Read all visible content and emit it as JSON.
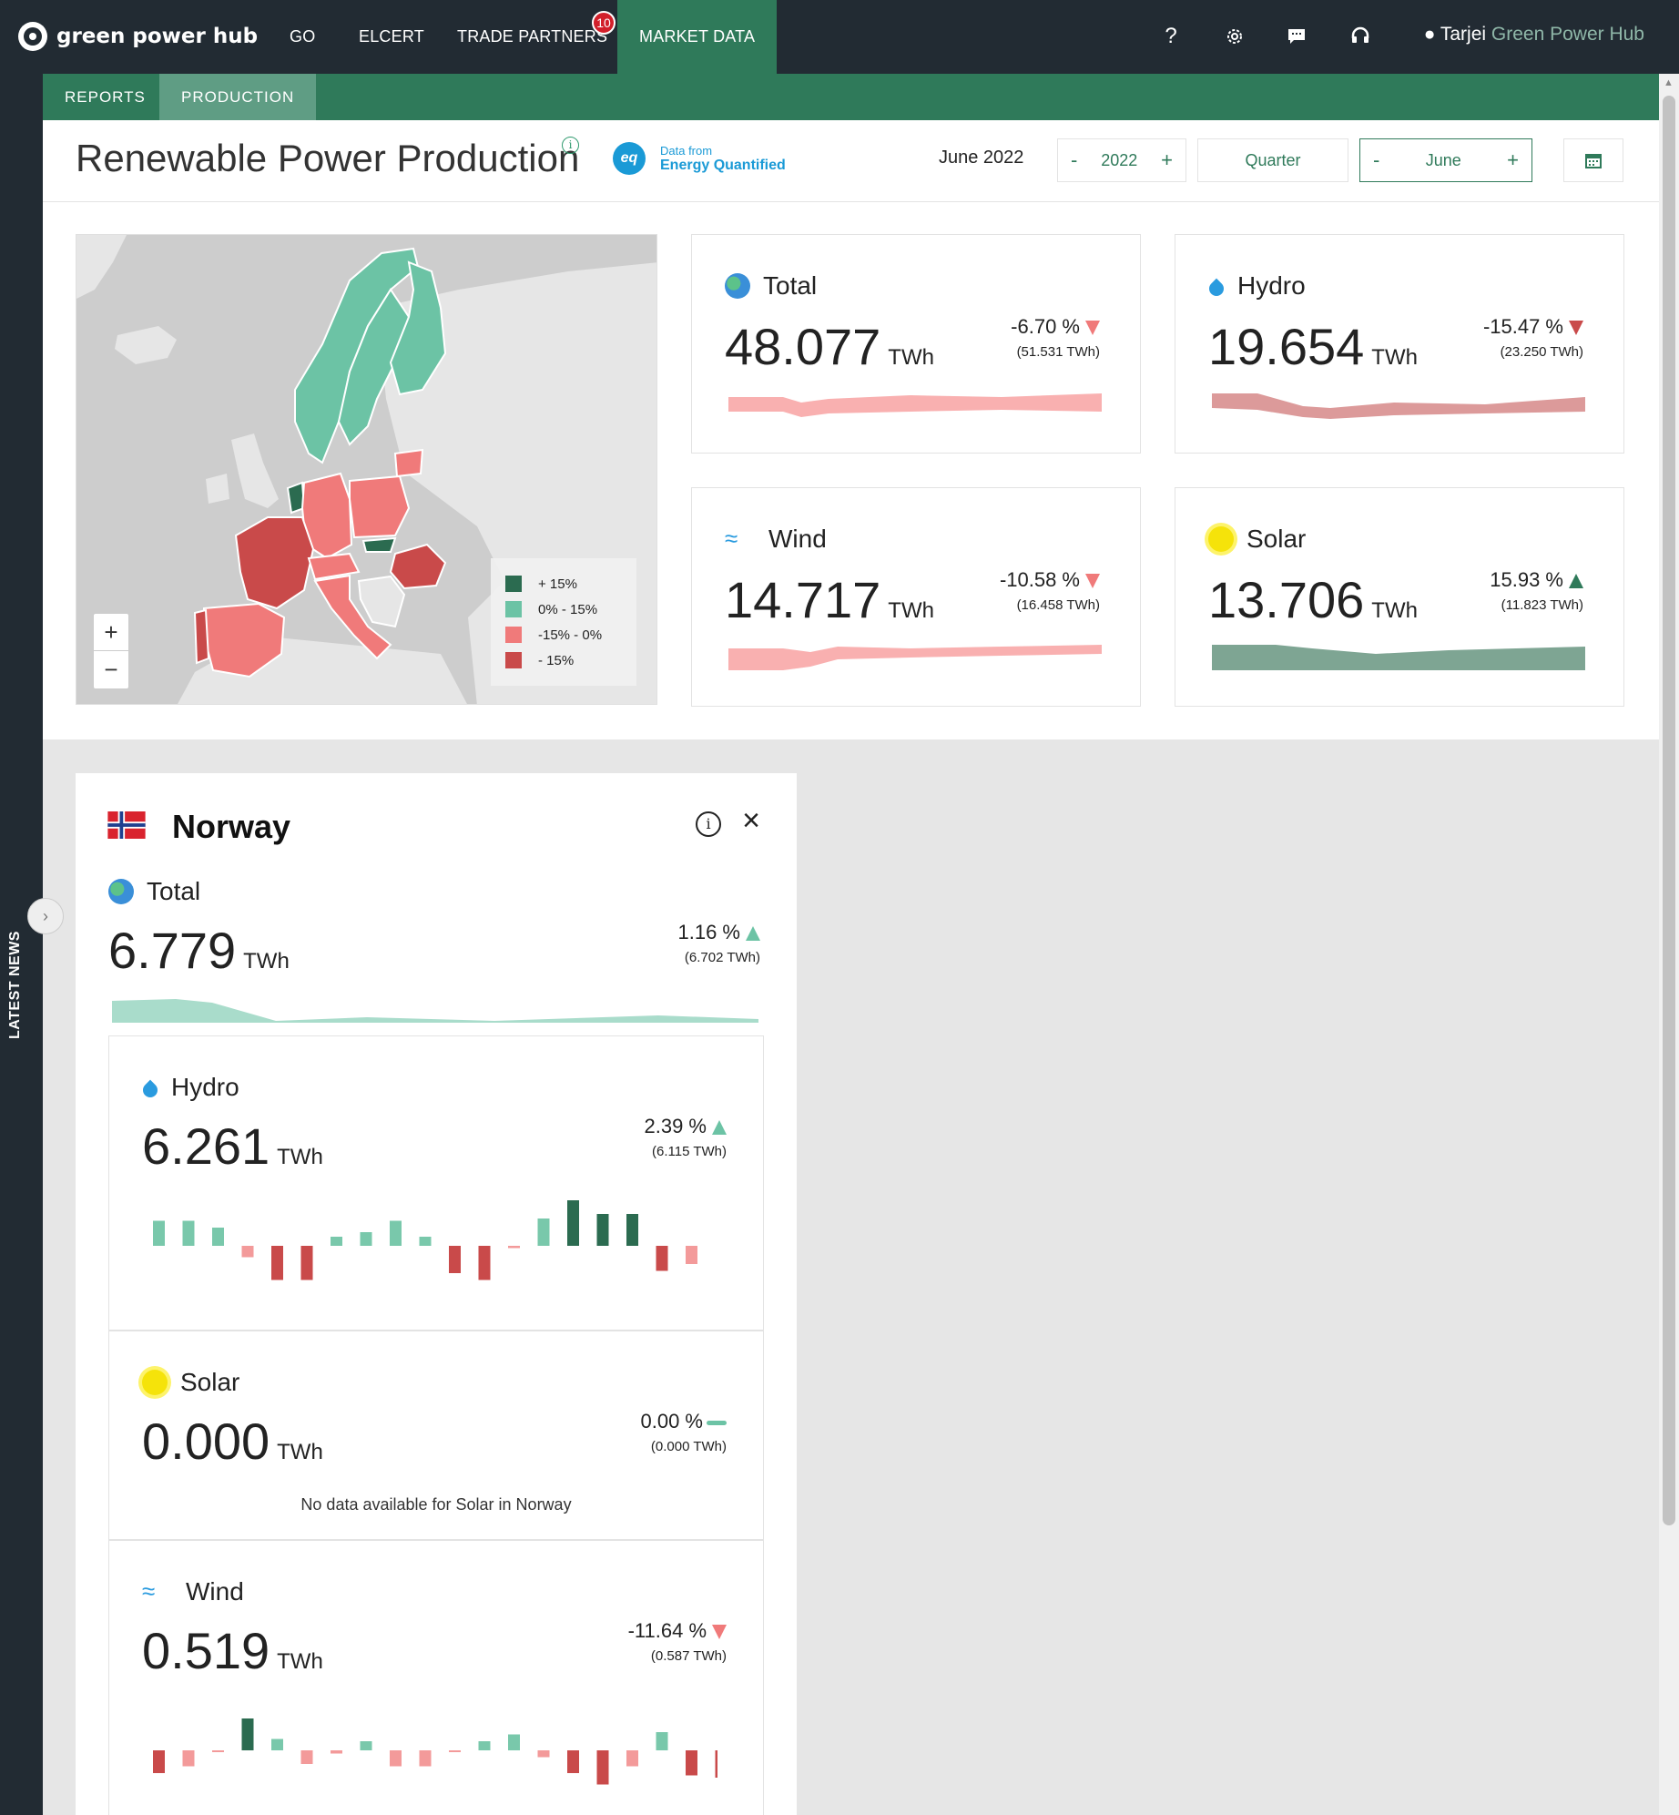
{
  "nav": {
    "brand": "green power hub",
    "items": [
      {
        "label": "GO"
      },
      {
        "label": "ELCERT"
      },
      {
        "label": "TRADE PARTNERS",
        "badge": "10"
      },
      {
        "label": "MARKET DATA",
        "active": true
      }
    ],
    "icons": [
      "help-icon",
      "gear-icon",
      "chat-icon",
      "support-icon"
    ],
    "help_glyph": "?",
    "user": {
      "name": "Tarjei",
      "org": "Green Power Hub"
    }
  },
  "rail": {
    "label": "LATEST NEWS"
  },
  "subnav": {
    "tabs": [
      {
        "label": "REPORTS"
      },
      {
        "label": "PRODUCTION",
        "active": true
      }
    ]
  },
  "header": {
    "title": "Renewable Power Production",
    "info_glyph": "i",
    "data_from": "Data from",
    "provider": "Energy Quantified",
    "provider_logo": "eq",
    "period": "June 2022",
    "year": "2022",
    "granularity": "Quarter",
    "month": "June",
    "minus": "-",
    "plus": "+"
  },
  "map": {
    "legend": [
      {
        "label": "+ 15%",
        "color": "#2b6b50"
      },
      {
        "label": "0% - 15%",
        "color": "#6cc3a5"
      },
      {
        "label": "-15% - 0%",
        "color": "#f07a7a"
      },
      {
        "label": "- 15%",
        "color": "#c94a4a"
      }
    ],
    "zoom_in": "+",
    "zoom_out": "−"
  },
  "summary": [
    {
      "title": "Total",
      "icon": "globe-icon",
      "value": "48.077",
      "unit": "TWh",
      "pct": "-6.70 %",
      "dir": "down",
      "prev": "(51.531 TWh)",
      "color": "#f9b0b0"
    },
    {
      "title": "Hydro",
      "icon": "drop-icon",
      "value": "19.654",
      "unit": "TWh",
      "pct": "-15.47 %",
      "dir": "down-dark",
      "prev": "(23.250 TWh)",
      "color": "#dc9a9a"
    },
    {
      "title": "Wind",
      "icon": "wind-icon",
      "value": "14.717",
      "unit": "TWh",
      "pct": "-10.58 %",
      "dir": "down",
      "prev": "(16.458 TWh)",
      "color": "#f9b0b0"
    },
    {
      "title": "Solar",
      "icon": "sun-icon",
      "value": "13.706",
      "unit": "TWh",
      "pct": "15.93 %",
      "dir": "up",
      "prev": "(11.823 TWh)",
      "color": "#7ea593"
    }
  ],
  "country": {
    "name": "Norway",
    "info_glyph": "i",
    "close_glyph": "×",
    "total": {
      "title": "Total",
      "value": "6.779",
      "unit": "TWh",
      "pct": "1.16 %",
      "prev": "(6.702 TWh)"
    },
    "hydro": {
      "title": "Hydro",
      "value": "6.261",
      "unit": "TWh",
      "pct": "2.39 %",
      "prev": "(6.115 TWh)",
      "bars": [
        0.55,
        0.55,
        0.4,
        -0.25,
        -0.75,
        -0.75,
        0.2,
        0.3,
        0.55,
        0.2,
        -0.6,
        -0.75,
        -0.05,
        0.6,
        1.0,
        0.7,
        0.7,
        -0.55,
        -0.4
      ]
    },
    "solar": {
      "title": "Solar",
      "value": "0.000",
      "unit": "TWh",
      "pct": "0.00 %",
      "prev": "(0.000 TWh)",
      "nodata": "No data available for Solar in Norway"
    },
    "wind": {
      "title": "Wind",
      "value": "0.519",
      "unit": "TWh",
      "pct": "-11.64 %",
      "prev": "(0.587 TWh)",
      "bars": [
        -0.5,
        -0.35,
        -0.02,
        0.7,
        0.25,
        -0.3,
        -0.07,
        0.2,
        -0.35,
        -0.35,
        -0.02,
        0.2,
        0.35,
        -0.15,
        -0.5,
        -0.75,
        -0.35,
        0.4,
        -0.55,
        -0.6
      ]
    }
  }
}
